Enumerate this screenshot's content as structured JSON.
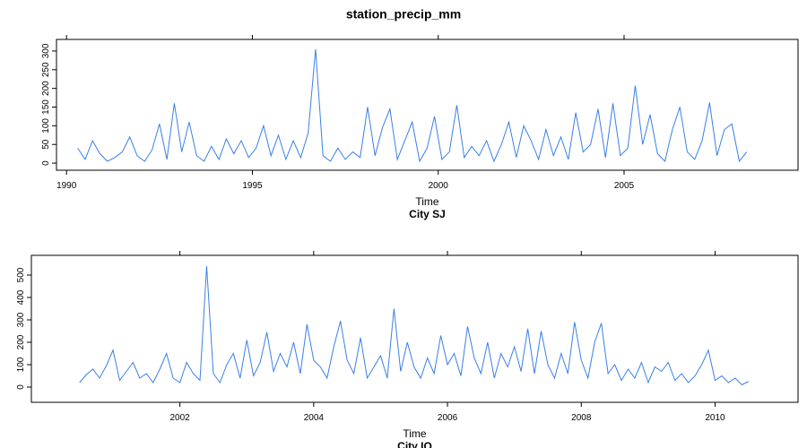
{
  "title": "station_precip_mm",
  "chart_data": [
    {
      "type": "line",
      "title": "City SJ",
      "x_label": "Time",
      "color": "#3a7fe6",
      "x": [
        1990.3,
        1990.5,
        1990.7,
        1990.9,
        1991.1,
        1991.3,
        1991.5,
        1991.7,
        1991.9,
        1992.1,
        1992.3,
        1992.5,
        1992.7,
        1992.9,
        1993.1,
        1993.3,
        1993.5,
        1993.7,
        1993.9,
        1994.1,
        1994.3,
        1994.5,
        1994.7,
        1994.9,
        1995.1,
        1995.3,
        1995.5,
        1995.7,
        1995.9,
        1996.1,
        1996.3,
        1996.5,
        1996.7,
        1996.9,
        1997.1,
        1997.3,
        1997.5,
        1997.7,
        1997.9,
        1998.1,
        1998.3,
        1998.5,
        1998.7,
        1998.9,
        1999.1,
        1999.3,
        1999.5,
        1999.7,
        1999.9,
        2000.1,
        2000.3,
        2000.5,
        2000.7,
        2000.9,
        2001.1,
        2001.3,
        2001.5,
        2001.7,
        2001.9,
        2002.1,
        2002.3,
        2002.5,
        2002.7,
        2002.9,
        2003.1,
        2003.3,
        2003.5,
        2003.7,
        2003.9,
        2004.1,
        2004.3,
        2004.5,
        2004.7,
        2004.9,
        2005.1,
        2005.3,
        2005.5,
        2005.7,
        2005.9,
        2006.1,
        2006.3,
        2006.5,
        2006.7,
        2006.9,
        2007.1,
        2007.3,
        2007.5,
        2007.7,
        2007.9,
        2008.1,
        2008.3
      ],
      "values": [
        40,
        10,
        60,
        25,
        5,
        15,
        30,
        70,
        20,
        5,
        35,
        105,
        10,
        160,
        30,
        110,
        20,
        5,
        45,
        10,
        65,
        25,
        60,
        15,
        40,
        100,
        20,
        75,
        10,
        60,
        15,
        80,
        305,
        20,
        5,
        40,
        10,
        30,
        15,
        150,
        20,
        95,
        145,
        10,
        60,
        110,
        5,
        40,
        125,
        10,
        30,
        155,
        15,
        45,
        20,
        60,
        5,
        50,
        110,
        15,
        100,
        60,
        10,
        90,
        20,
        70,
        10,
        135,
        30,
        50,
        145,
        15,
        160,
        20,
        40,
        207,
        50,
        130,
        25,
        5,
        90,
        150,
        30,
        10,
        60,
        162,
        20,
        90,
        105,
        5,
        30
      ],
      "xlim": [
        1989.73,
        2009.68
      ],
      "ylim": [
        -19,
        331
      ],
      "xticks": [
        1990,
        1995,
        2000,
        2005
      ],
      "yticks": [
        0,
        50,
        100,
        150,
        200,
        250,
        300
      ]
    },
    {
      "type": "line",
      "title": "City IQ",
      "x_label": "Time",
      "color": "#3a7fe6",
      "x": [
        2000.5,
        2000.6,
        2000.7,
        2000.8,
        2000.9,
        2001.0,
        2001.1,
        2001.2,
        2001.3,
        2001.4,
        2001.5,
        2001.6,
        2001.7,
        2001.8,
        2001.9,
        2002.0,
        2002.1,
        2002.2,
        2002.3,
        2002.4,
        2002.5,
        2002.6,
        2002.7,
        2002.8,
        2002.9,
        2003.0,
        2003.1,
        2003.2,
        2003.3,
        2003.4,
        2003.5,
        2003.6,
        2003.7,
        2003.8,
        2003.9,
        2004.0,
        2004.1,
        2004.2,
        2004.3,
        2004.4,
        2004.5,
        2004.6,
        2004.7,
        2004.8,
        2004.9,
        2005.0,
        2005.1,
        2005.2,
        2005.3,
        2005.4,
        2005.5,
        2005.6,
        2005.7,
        2005.8,
        2005.9,
        2006.0,
        2006.1,
        2006.2,
        2006.3,
        2006.4,
        2006.5,
        2006.6,
        2006.7,
        2006.8,
        2006.9,
        2007.0,
        2007.1,
        2007.2,
        2007.3,
        2007.4,
        2007.5,
        2007.6,
        2007.7,
        2007.8,
        2007.9,
        2008.0,
        2008.1,
        2008.2,
        2008.3,
        2008.4,
        2008.5,
        2008.6,
        2008.7,
        2008.8,
        2008.9,
        2009.0,
        2009.1,
        2009.2,
        2009.3,
        2009.4,
        2009.5,
        2009.6,
        2009.7,
        2009.8,
        2009.9,
        2010.0,
        2010.1,
        2010.2,
        2010.3,
        2010.4,
        2010.5
      ],
      "values": [
        20,
        55,
        80,
        40,
        95,
        165,
        30,
        70,
        110,
        40,
        60,
        20,
        80,
        150,
        40,
        20,
        110,
        60,
        30,
        540,
        60,
        20,
        100,
        150,
        40,
        210,
        50,
        110,
        245,
        70,
        150,
        90,
        200,
        60,
        280,
        120,
        90,
        40,
        180,
        295,
        120,
        60,
        220,
        40,
        90,
        140,
        40,
        350,
        70,
        200,
        90,
        40,
        130,
        60,
        230,
        100,
        150,
        50,
        270,
        130,
        60,
        200,
        40,
        150,
        90,
        180,
        70,
        260,
        60,
        250,
        100,
        40,
        150,
        60,
        290,
        120,
        40,
        200,
        285,
        60,
        100,
        30,
        80,
        40,
        110,
        20,
        90,
        70,
        110,
        30,
        60,
        20,
        50,
        100,
        165,
        30,
        50,
        20,
        40,
        10,
        25
      ],
      "xlim": [
        1999.78,
        2011.24
      ],
      "ylim": [
        -68,
        588
      ],
      "xticks": [
        2002,
        2004,
        2006,
        2008,
        2010
      ],
      "yticks": [
        0,
        100,
        200,
        300,
        400,
        500
      ]
    }
  ]
}
